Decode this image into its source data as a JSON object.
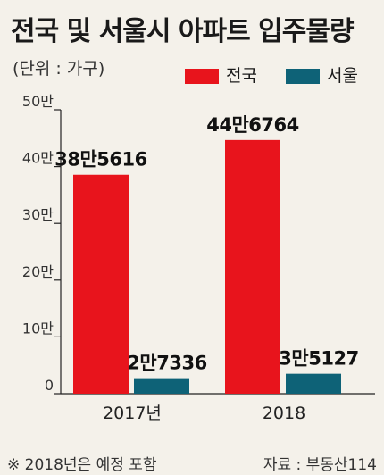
{
  "title": "전국 및 서울시 아파트 입주물량",
  "unit": "(단위 : 가구)",
  "colors": {
    "national": "#e8141c",
    "seoul": "#0e6277"
  },
  "footnote": "※ 2018년은 예정 포함",
  "source": "자료 : 부동산114",
  "chart_data": {
    "type": "bar",
    "categories": [
      "2017년",
      "2018"
    ],
    "series": [
      {
        "name": "전국",
        "values": [
          385616,
          446764
        ],
        "labels": [
          "38만5616",
          "44만6764"
        ]
      },
      {
        "name": "서울",
        "values": [
          27336,
          35127
        ],
        "labels": [
          "2만7336",
          "3만5127"
        ]
      }
    ],
    "ylim": [
      0,
      500000
    ],
    "yticks": [
      0,
      100000,
      200000,
      300000,
      400000,
      500000
    ],
    "ytick_labels": [
      "0",
      "10만",
      "20만",
      "30만",
      "40만",
      "50만"
    ],
    "grid": false,
    "legend": "top-right"
  }
}
